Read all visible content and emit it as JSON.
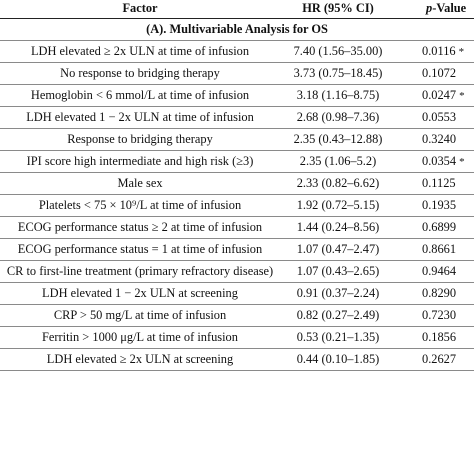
{
  "header": {
    "factor": "Factor",
    "hr": "HR (95% CI)",
    "p_italic": "p",
    "p_rest": "-Value"
  },
  "section": {
    "label_prefix": "(A). ",
    "label_bold": "Multivariable Analysis for OS"
  },
  "rows": [
    {
      "factor": "LDH elevated ≥ 2x ULN at time of infusion",
      "hr": "7.40 (1.56–35.00)",
      "p": "0.0116",
      "sig": "*"
    },
    {
      "factor": "No response to bridging therapy",
      "hr": "3.73 (0.75–18.45)",
      "p": "0.1072",
      "sig": ""
    },
    {
      "factor": "Hemoglobin < 6 mmol/L at time of infusion",
      "hr": "3.18 (1.16–8.75)",
      "p": "0.0247",
      "sig": "*"
    },
    {
      "factor": "LDH elevated 1 − 2x ULN at time of infusion",
      "hr": "2.68 (0.98–7.36)",
      "p": "0.0553",
      "sig": ""
    },
    {
      "factor": "Response to bridging therapy",
      "hr": "2.35 (0.43–12.88)",
      "p": "0.3240",
      "sig": ""
    },
    {
      "factor": "IPI score high intermediate and high risk (≥3)",
      "hr": "2.35 (1.06–5.2)",
      "p": "0.0354",
      "sig": "*"
    },
    {
      "factor": "Male sex",
      "hr": "2.33 (0.82–6.62)",
      "p": "0.1125",
      "sig": ""
    },
    {
      "factor": "Platelets < 75 × 10⁹/L at time of infusion",
      "hr": "1.92 (0.72–5.15)",
      "p": "0.1935",
      "sig": ""
    },
    {
      "factor": "ECOG performance status ≥ 2 at time of infusion",
      "hr": "1.44 (0.24–8.56)",
      "p": "0.6899",
      "sig": ""
    },
    {
      "factor": "ECOG performance status = 1 at time of infusion",
      "hr": "1.07 (0.47–2.47)",
      "p": "0.8661",
      "sig": ""
    },
    {
      "factor": "CR to first-line treatment (primary refractory disease)",
      "hr": "1.07 (0.43–2.65)",
      "p": "0.9464",
      "sig": ""
    },
    {
      "factor": "LDH elevated 1 − 2x ULN at screening",
      "hr": "0.91 (0.37–2.24)",
      "p": "0.8290",
      "sig": ""
    },
    {
      "factor": "CRP > 50 mg/L at time of infusion",
      "hr": "0.82 (0.27–2.49)",
      "p": "0.7230",
      "sig": ""
    },
    {
      "factor": "Ferritin > 1000 μg/L at time of infusion",
      "hr": "0.53 (0.21–1.35)",
      "p": "0.1856",
      "sig": ""
    },
    {
      "factor": "LDH elevated ≥ 2x ULN at screening",
      "hr": "0.44 (0.10–1.85)",
      "p": "0.2627",
      "sig": ""
    }
  ]
}
